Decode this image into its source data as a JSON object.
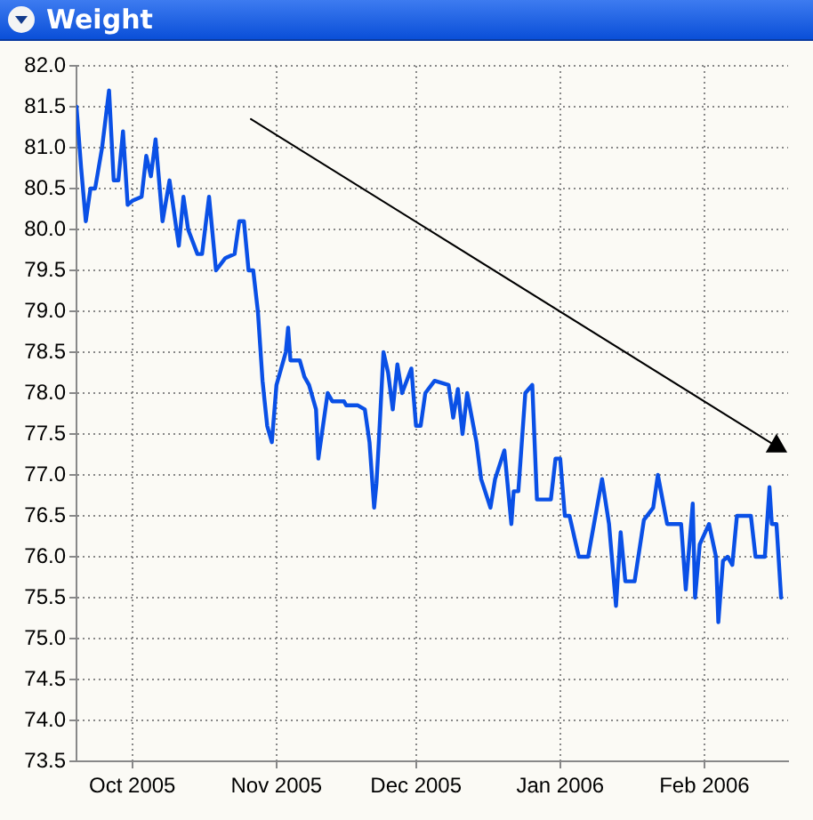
{
  "chart_data": {
    "type": "line",
    "title": "Weight",
    "xlim": [
      "2005-09-19",
      "2006-02-19"
    ],
    "xticks": [
      {
        "value": "2005-10-01",
        "label": "Oct 2005"
      },
      {
        "value": "2005-11-01",
        "label": "Nov 2005"
      },
      {
        "value": "2005-12-01",
        "label": "Dec 2005"
      },
      {
        "value": "2006-01-01",
        "label": "Jan 2006"
      },
      {
        "value": "2006-02-01",
        "label": "Feb 2006"
      }
    ],
    "ylim": [
      73.5,
      82
    ],
    "yticks": [
      {
        "value": 73.5,
        "label": "73.5"
      },
      {
        "value": 74,
        "label": "74.0"
      },
      {
        "value": 74.5,
        "label": "74.5"
      },
      {
        "value": 75,
        "label": "75.0"
      },
      {
        "value": 75.5,
        "label": "75.5"
      },
      {
        "value": 76,
        "label": "76.0"
      },
      {
        "value": 76.5,
        "label": "76.5"
      },
      {
        "value": 77,
        "label": "77.0"
      },
      {
        "value": 77.5,
        "label": "77.5"
      },
      {
        "value": 78,
        "label": "78.0"
      },
      {
        "value": 78.5,
        "label": "78.5"
      },
      {
        "value": 79,
        "label": "79.0"
      },
      {
        "value": 79.5,
        "label": "79.5"
      },
      {
        "value": 80,
        "label": "80.0"
      },
      {
        "value": 80.5,
        "label": "80.5"
      },
      {
        "value": 81,
        "label": "81.0"
      },
      {
        "value": 81.5,
        "label": "81.5"
      },
      {
        "value": 82,
        "label": "82.0"
      }
    ],
    "grid": true,
    "legend": false,
    "marker": "none",
    "line_style": "solid",
    "series": [
      {
        "color": "#0a50e6",
        "x": [
          "2005-09-19",
          "2005-09-20",
          "2005-09-21",
          "2005-09-22",
          "2005-09-23",
          "2005-09-24T12:00",
          "2005-09-26",
          "2005-09-27",
          "2005-09-28",
          "2005-09-29",
          "2005-09-30",
          "2005-10-01",
          "2005-10-03",
          "2005-10-04",
          "2005-10-05",
          "2005-10-06",
          "2005-10-07T12:00",
          "2005-10-09",
          "2005-10-11",
          "2005-10-12",
          "2005-10-13",
          "2005-10-15",
          "2005-10-16",
          "2005-10-17T12:00",
          "2005-10-19",
          "2005-10-21",
          "2005-10-23",
          "2005-10-24",
          "2005-10-25",
          "2005-10-26",
          "2005-10-27",
          "2005-10-28",
          "2005-10-29",
          "2005-10-30",
          "2005-10-31",
          "2005-11-01",
          "2005-11-03",
          "2005-11-03T12:00",
          "2005-11-04",
          "2005-11-06",
          "2005-11-07",
          "2005-11-08",
          "2005-11-09T12:00",
          "2005-11-10",
          "2005-11-12",
          "2005-11-13",
          "2005-11-15T12:00",
          "2005-11-16",
          "2005-11-18T12:00",
          "2005-11-20",
          "2005-11-21",
          "2005-11-22",
          "2005-11-22T12:00",
          "2005-11-23",
          "2005-11-24",
          "2005-11-25",
          "2005-11-26",
          "2005-11-27",
          "2005-11-28",
          "2005-11-30",
          "2005-12-01",
          "2005-12-02",
          "2005-12-03",
          "2005-12-05",
          "2005-12-08",
          "2005-12-09",
          "2005-12-10",
          "2005-12-11",
          "2005-12-12",
          "2005-12-14",
          "2005-12-15",
          "2005-12-17",
          "2005-12-18",
          "2005-12-20",
          "2005-12-21T12:00",
          "2005-12-22",
          "2005-12-23",
          "2005-12-24T12:00",
          "2005-12-26",
          "2005-12-27",
          "2005-12-30",
          "2005-12-31",
          "2006-01-01",
          "2006-01-02",
          "2006-01-03",
          "2006-01-05",
          "2006-01-07",
          "2006-01-10",
          "2006-01-11T12:00",
          "2006-01-13",
          "2006-01-14",
          "2006-01-15",
          "2006-01-17",
          "2006-01-19",
          "2006-01-21",
          "2006-01-22",
          "2006-01-24",
          "2006-01-27",
          "2006-01-28",
          "2006-01-29",
          "2006-01-29T12:00",
          "2006-01-30",
          "2006-01-31",
          "2006-02-02",
          "2006-02-03T12:00",
          "2006-02-04",
          "2006-02-05",
          "2006-02-06",
          "2006-02-07",
          "2006-02-08",
          "2006-02-11",
          "2006-02-12",
          "2006-02-14",
          "2006-02-15",
          "2006-02-15T12:00",
          "2006-02-16T12:00",
          "2006-02-17T12:00"
        ],
        "values": [
          81.5,
          80.75,
          80.1,
          80.5,
          80.5,
          81.0,
          81.7,
          80.6,
          80.6,
          81.2,
          80.3,
          80.35,
          80.4,
          80.9,
          80.65,
          81.1,
          80.1,
          80.6,
          79.8,
          80.4,
          80.0,
          79.7,
          79.7,
          80.4,
          79.5,
          79.65,
          79.7,
          80.1,
          80.1,
          79.5,
          79.5,
          79.0,
          78.15,
          77.6,
          77.4,
          78.1,
          78.5,
          78.8,
          78.4,
          78.4,
          78.2,
          78.1,
          77.8,
          77.2,
          78.0,
          77.9,
          77.9,
          77.85,
          77.85,
          77.8,
          77.4,
          76.6,
          76.9,
          77.4,
          78.5,
          78.25,
          77.8,
          78.35,
          78.0,
          78.3,
          77.6,
          77.6,
          78.0,
          78.15,
          78.1,
          77.7,
          78.05,
          77.5,
          78.0,
          77.4,
          76.95,
          76.6,
          76.95,
          77.3,
          76.4,
          76.8,
          76.8,
          78.0,
          78.1,
          76.7,
          76.7,
          77.2,
          77.2,
          76.5,
          76.5,
          76.0,
          76.0,
          76.95,
          76.4,
          75.4,
          76.3,
          75.7,
          75.7,
          76.45,
          76.6,
          77.0,
          76.4,
          76.4,
          75.6,
          76.3,
          76.65,
          75.5,
          76.15,
          76.4,
          76.0,
          75.2,
          75.95,
          76.0,
          75.9,
          76.5,
          76.5,
          76.0,
          76.0,
          76.85,
          76.4,
          76.4,
          75.5
        ]
      },
      {
        "type": "line",
        "color": "#000000",
        "marker": "triangle",
        "x": [
          "2005-10-26T12:00",
          "2006-02-16T12:00"
        ],
        "values": [
          81.35,
          77.35
        ]
      }
    ]
  }
}
